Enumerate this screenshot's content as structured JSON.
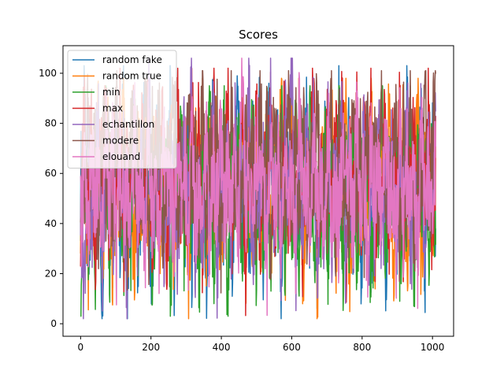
{
  "chart_data": {
    "type": "line",
    "title": "Scores",
    "xlabel": "",
    "ylabel": "",
    "xlim": [
      -50,
      1060
    ],
    "ylim": [
      -5,
      111
    ],
    "xticks": [
      0,
      200,
      400,
      600,
      800,
      1000
    ],
    "yticks": [
      0,
      20,
      40,
      60,
      80,
      100
    ],
    "grid": false,
    "legend_location": "upper left",
    "n_points": 1010,
    "series": [
      {
        "name": "random fake",
        "color": "#1f77b4",
        "summary": {
          "min": 2,
          "max": 103,
          "typical_range": [
            20,
            85
          ]
        },
        "values": [
          55,
          88,
          22,
          61,
          34,
          70,
          12,
          80,
          45,
          29,
          67,
          38,
          91,
          18,
          52,
          73,
          26,
          59,
          84,
          41,
          15,
          63,
          77,
          33,
          48,
          90,
          21,
          56,
          69,
          37,
          82,
          24,
          60,
          44,
          75,
          10,
          53,
          86,
          31,
          65,
          40,
          78,
          19,
          57,
          88,
          35,
          62,
          28,
          71,
          47,
          83,
          23,
          58,
          92,
          39,
          66,
          14,
          74,
          50,
          81,
          27,
          61,
          43,
          87,
          36,
          68,
          20,
          55,
          79,
          32,
          64,
          46,
          89,
          25,
          59,
          72,
          38,
          85,
          17,
          54,
          76,
          30,
          63,
          42,
          80,
          22,
          57,
          70,
          34,
          67,
          45,
          93,
          28,
          60,
          49,
          84,
          24,
          58,
          73,
          36
        ]
      },
      {
        "name": "random true",
        "color": "#ff7f0e",
        "summary": {
          "min": 2,
          "max": 98,
          "typical_range": [
            20,
            85
          ]
        },
        "values": [
          42,
          71,
          18,
          66,
          30,
          84,
          25,
          57,
          76,
          13,
          62,
          48,
          89,
          34,
          59,
          21,
          73,
          44,
          95,
          28,
          54,
          80,
          16,
          67,
          39,
          86,
          23,
          61,
          47,
          78,
          11,
          56,
          70,
          35,
          92,
          27,
          64,
          43,
          81,
          19,
          58,
          74,
          32,
          68,
          46,
          88,
          24,
          60,
          37,
          83,
          15,
          53,
          77,
          29,
          65,
          41,
          90,
          26,
          57,
          72,
          33,
          85,
          20,
          62,
          49,
          79,
          14,
          55,
          69,
          38,
          94,
          22,
          63,
          45,
          82,
          17,
          59,
          75,
          31,
          66,
          40,
          87,
          25,
          56,
          71,
          36,
          84,
          12,
          61,
          48,
          80,
          27,
          64,
          43,
          91,
          19,
          58,
          73,
          34,
          68
        ]
      },
      {
        "name": "min",
        "color": "#2ca02c",
        "summary": {
          "min": 3,
          "max": 95,
          "typical_range": [
            15,
            80
          ]
        },
        "values": [
          11,
          64,
          27,
          78,
          19,
          55,
          38,
          86,
          24,
          61,
          45,
          73,
          16,
          58,
          32,
          82,
          28,
          67,
          41,
          90,
          21,
          53,
          70,
          35,
          77,
          14,
          62,
          48,
          84,
          26,
          57,
          39,
          75,
          18,
          66,
          43,
          88,
          23,
          59,
          36,
          80,
          12,
          63,
          47,
          71,
          29,
          56,
          40,
          85,
          20,
          65,
          33,
          79,
          17,
          60,
          44,
          92,
          25,
          54,
          37,
          74,
          22,
          68,
          46,
          83,
          15,
          57,
          34,
          76,
          27,
          62,
          41,
          89,
          19,
          58,
          31,
          81,
          24,
          66,
          48,
          72,
          13,
          55,
          39,
          87,
          28,
          61,
          45,
          77,
          21,
          64,
          36,
          84,
          17,
          59,
          42,
          70,
          26,
          67,
          33
        ]
      },
      {
        "name": "max",
        "color": "#d62728",
        "summary": {
          "min": 0,
          "max": 102,
          "typical_range": [
            25,
            90
          ]
        },
        "values": [
          33,
          92,
          46,
          81,
          27,
          69,
          58,
          88,
          39,
          74,
          52,
          95,
          31,
          66,
          44,
          85,
          24,
          77,
          61,
          90,
          36,
          70,
          49,
          83,
          29,
          63,
          55,
          97,
          41,
          72,
          34,
          86,
          50,
          79,
          26,
          67,
          57,
          93,
          38,
          75,
          45,
          89,
          30,
          64,
          53,
          82,
          22,
          71,
          48,
          96,
          35,
          68,
          60,
          87,
          28,
          76,
          42,
          91,
          37,
          65,
          51,
          84,
          25,
          73,
          56,
          99,
          32,
          62,
          47,
          80,
          40,
          78,
          54,
          94,
          27,
          69,
          44,
          86,
          33,
          74,
          58,
          90,
          23,
          66,
          50,
          83,
          39,
          77,
          46,
          92,
          31,
          63,
          55,
          88,
          36,
          71,
          43,
          85,
          29,
          70
        ]
      },
      {
        "name": "echantillon",
        "color": "#9467bd",
        "summary": {
          "min": 2,
          "max": 106,
          "typical_range": [
            20,
            85
          ]
        },
        "values": [
          48,
          17,
          76,
          39,
          62,
          85,
          23,
          57,
          71,
          30,
          89,
          44,
          66,
          12,
          53,
          80,
          35,
          69,
          26,
          91,
          41,
          58,
          74,
          19,
          64,
          37,
          83,
          28,
          55,
          72,
          46,
          97,
          21,
          60,
          33,
          78,
          50,
          86,
          15,
          63,
          42,
          70,
          25,
          81,
          38,
          67,
          54,
          92,
          20,
          59,
          47,
          75,
          31,
          88,
          43,
          65,
          27,
          79,
          52,
          106,
          24,
          61,
          36,
          73,
          49,
          84,
          18,
          56,
          40,
          77,
          29,
          68,
          45,
          90,
          22,
          62,
          34,
          82,
          51,
          71,
          14,
          58,
          39,
          87,
          26,
          66,
          44,
          76,
          32,
          64,
          48,
          93,
          20,
          55,
          37,
          80,
          28,
          69,
          42,
          74
        ]
      },
      {
        "name": "modere",
        "color": "#8c564b",
        "summary": {
          "min": 0,
          "max": 101,
          "typical_range": [
            30,
            85
          ]
        },
        "values": [
          60,
          35,
          82,
          47,
          71,
          28,
          88,
          54,
          66,
          39,
          93,
          45,
          77,
          31,
          85,
          58,
          69,
          42,
          96,
          36,
          74,
          50,
          87,
          29,
          63,
          55,
          91,
          40,
          72,
          33,
          80,
          57,
          68,
          44,
          98,
          38,
          76,
          52,
          84,
          27,
          65,
          49,
          89,
          43,
          70,
          34,
          81,
          59,
          73,
          37,
          95,
          46,
          79,
          30,
          86,
          53,
          67,
          41,
          100,
          35,
          75,
          48,
          83,
          32,
          62,
          56,
          90,
          39,
          71,
          44,
          87,
          28,
          78,
          51,
          64,
          36,
          92,
          47,
          69,
          33,
          85,
          58,
          74,
          42,
          97,
          38,
          66,
          50,
          81,
          30,
          77,
          45,
          88,
          34,
          70,
          53,
          94,
          40,
          63,
          101
        ]
      },
      {
        "name": "elouand",
        "color": "#e377c2",
        "summary": {
          "min": 0,
          "max": 106,
          "typical_range": [
            25,
            80
          ]
        },
        "values": [
          38,
          64,
          29,
          71,
          45,
          57,
          33,
          80,
          50,
          68,
          27,
          74,
          41,
          62,
          36,
          78,
          48,
          55,
          31,
          85,
          43,
          66,
          26,
          72,
          52,
          60,
          35,
          76,
          47,
          69,
          30,
          82,
          40,
          58,
          54,
          73,
          28,
          65,
          44,
          79,
          37,
          61,
          49,
          70,
          32,
          106,
          46,
          59,
          39,
          75,
          53,
          63,
          25,
          81,
          42,
          67,
          34,
          77,
          51,
          56,
          30,
          84,
          45,
          62,
          38,
          71,
          48,
          66,
          27,
          79,
          41,
          58,
          36,
          74,
          50,
          69,
          33,
          83,
          44,
          60,
          29,
          76,
          47,
          64,
          35,
          72,
          52,
          57,
          31,
          80,
          39,
          68,
          43,
          63,
          26,
          77,
          49,
          61,
          37,
          70
        ]
      }
    ]
  }
}
